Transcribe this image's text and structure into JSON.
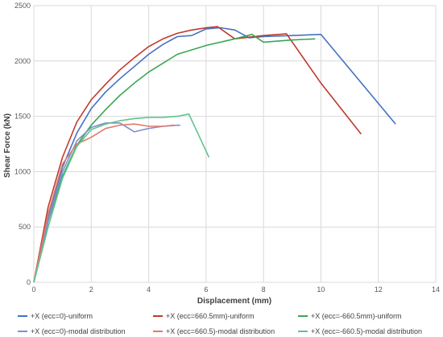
{
  "chart_data": {
    "type": "line",
    "title": "",
    "xlabel": "Displacement (mm)",
    "ylabel": "Shear Force (kN)",
    "xlim": [
      0,
      14
    ],
    "ylim": [
      0,
      2500
    ],
    "xticks": [
      0,
      2,
      4,
      6,
      8,
      10,
      12,
      14
    ],
    "yticks": [
      0,
      500,
      1000,
      1500,
      2000,
      2500
    ],
    "grid": true,
    "legend_position": "bottom",
    "series": [
      {
        "name": "+X (ecc=0)-uniform",
        "color": "#4472c4",
        "x": [
          0,
          0.5,
          1,
          1.5,
          2,
          2.5,
          3,
          3.5,
          4,
          4.5,
          5,
          5.5,
          6,
          6.5,
          7,
          7.5,
          8,
          9,
          10,
          12.6
        ],
        "y": [
          0,
          600,
          1040,
          1350,
          1570,
          1720,
          1840,
          1950,
          2060,
          2150,
          2220,
          2230,
          2290,
          2300,
          2280,
          2210,
          2220,
          2230,
          2240,
          1430
        ]
      },
      {
        "name": "+X (ecc=660.5mm)-uniform",
        "color": "#c0392b",
        "x": [
          0,
          0.5,
          1,
          1.5,
          2,
          2.5,
          3,
          3.5,
          4,
          4.5,
          5,
          5.5,
          6,
          6.4,
          7,
          8,
          8.8,
          10,
          11.4
        ],
        "y": [
          0,
          680,
          1130,
          1450,
          1650,
          1790,
          1920,
          2030,
          2130,
          2200,
          2250,
          2280,
          2300,
          2310,
          2200,
          2230,
          2245,
          1800,
          1340
        ]
      },
      {
        "name": "+X (ecc=-660.5mm)-uniform",
        "color": "#3aa655",
        "x": [
          0,
          0.5,
          1,
          1.5,
          2,
          2.5,
          3,
          3.5,
          4,
          4.5,
          5,
          6,
          7,
          7.6,
          8,
          9,
          9.8
        ],
        "y": [
          0,
          550,
          960,
          1240,
          1420,
          1560,
          1690,
          1800,
          1900,
          1980,
          2060,
          2140,
          2200,
          2240,
          2170,
          2190,
          2200
        ]
      },
      {
        "name": "+X (ecc=0)-modal distribution",
        "color": "#7f8fd0",
        "x": [
          0,
          0.5,
          1,
          1.5,
          2,
          2.5,
          3,
          3.5,
          4,
          4.5,
          5.1
        ],
        "y": [
          0,
          560,
          1000,
          1280,
          1400,
          1440,
          1440,
          1360,
          1390,
          1410,
          1420
        ]
      },
      {
        "name": "+X (ecc=660.5)-modal distribution",
        "color": "#e07a6b",
        "x": [
          0,
          0.5,
          1,
          1.5,
          2,
          2.5,
          3,
          3.5,
          4,
          4.5,
          4.9
        ],
        "y": [
          0,
          620,
          1070,
          1250,
          1310,
          1390,
          1420,
          1430,
          1410,
          1410,
          1420
        ]
      },
      {
        "name": "+X (ecc=-660.5)-modal distribution",
        "color": "#5cc48e",
        "x": [
          0,
          0.5,
          1,
          1.5,
          2,
          2.5,
          3,
          3.5,
          4,
          4.5,
          5,
          5.4,
          6.1
        ],
        "y": [
          0,
          500,
          940,
          1230,
          1380,
          1430,
          1460,
          1480,
          1490,
          1490,
          1500,
          1520,
          1130
        ]
      }
    ]
  }
}
